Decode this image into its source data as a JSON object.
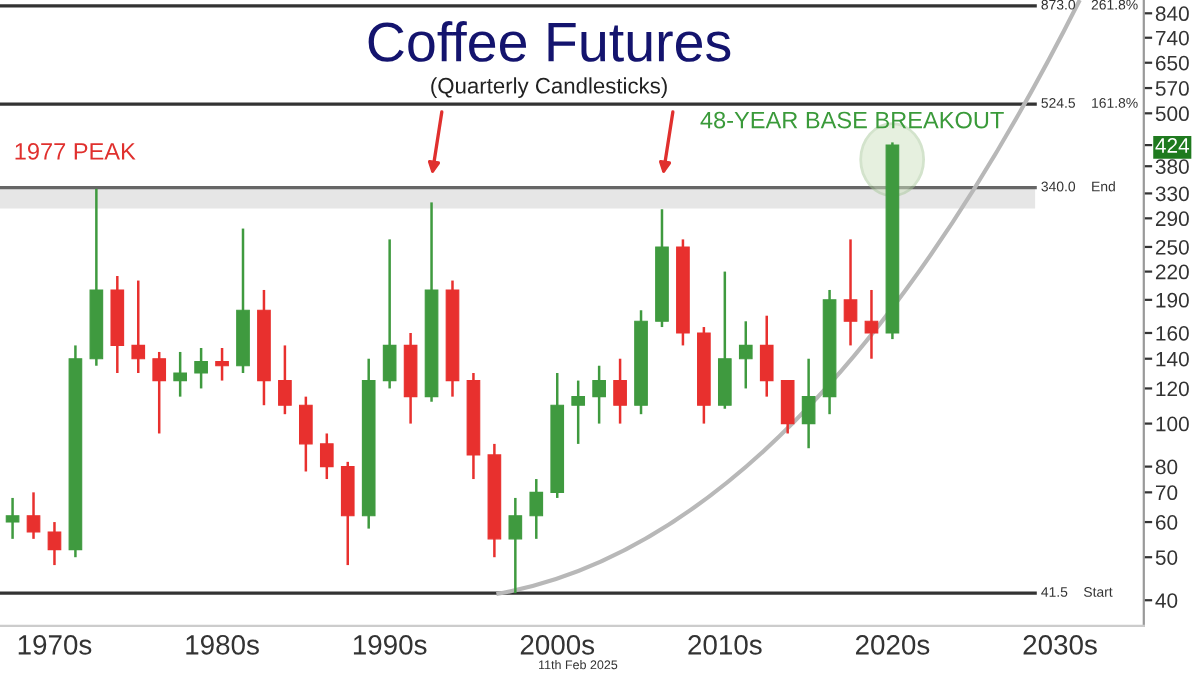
{
  "chart_data": {
    "type": "candlestick",
    "title": "Coffee Futures",
    "subtitle": "(Quarterly Candlesticks)",
    "log": true,
    "ylim": [
      35,
      900
    ],
    "yticks": [
      40,
      50,
      60,
      70,
      80,
      100,
      120,
      140,
      160,
      190,
      220,
      250,
      290,
      330,
      380,
      424,
      500,
      570,
      650,
      740,
      840
    ],
    "categories": [
      null,
      null,
      "1970s",
      null,
      null,
      null,
      null,
      null,
      null,
      null,
      "1980s",
      null,
      null,
      null,
      null,
      null,
      null,
      null,
      "1990s",
      null,
      null,
      null,
      null,
      null,
      null,
      null,
      "2000s",
      null,
      null,
      null,
      null,
      null,
      null,
      null,
      "2010s",
      null,
      null,
      null,
      null,
      null,
      null,
      null,
      "2020s",
      null,
      null,
      null,
      null,
      null,
      null,
      null,
      "2030s",
      null,
      null,
      null,
      null
    ],
    "ohlc": [
      [
        60,
        68,
        55,
        62
      ],
      [
        62,
        70,
        55,
        57
      ],
      [
        57,
        60,
        48,
        52
      ],
      [
        52,
        150,
        50,
        140
      ],
      [
        140,
        338,
        135,
        200
      ],
      [
        200,
        215,
        130,
        150
      ],
      [
        150,
        210,
        130,
        140
      ],
      [
        140,
        145,
        95,
        125
      ],
      [
        125,
        145,
        115,
        130
      ],
      [
        130,
        148,
        120,
        138
      ],
      [
        138,
        148,
        125,
        135
      ],
      [
        135,
        275,
        130,
        180
      ],
      [
        180,
        200,
        110,
        125
      ],
      [
        125,
        150,
        105,
        110
      ],
      [
        110,
        115,
        78,
        90
      ],
      [
        90,
        95,
        75,
        80
      ],
      [
        80,
        82,
        48,
        62
      ],
      [
        62,
        140,
        58,
        125
      ],
      [
        125,
        260,
        120,
        150
      ],
      [
        150,
        160,
        100,
        115
      ],
      [
        115,
        315,
        112,
        200
      ],
      [
        200,
        210,
        115,
        125
      ],
      [
        125,
        130,
        75,
        85
      ],
      [
        85,
        90,
        50,
        55
      ],
      [
        55,
        68,
        41.5,
        62
      ],
      [
        62,
        75,
        55,
        70
      ],
      [
        70,
        130,
        68,
        110
      ],
      [
        110,
        125,
        90,
        115
      ],
      [
        115,
        135,
        100,
        125
      ],
      [
        125,
        140,
        100,
        110
      ],
      [
        110,
        180,
        105,
        170
      ],
      [
        170,
        304,
        165,
        250
      ],
      [
        250,
        260,
        150,
        160
      ],
      [
        160,
        165,
        100,
        110
      ],
      [
        110,
        220,
        108,
        140
      ],
      [
        140,
        170,
        120,
        150
      ],
      [
        150,
        175,
        115,
        125
      ],
      [
        125,
        125,
        95,
        100
      ],
      [
        100,
        140,
        88,
        115
      ],
      [
        115,
        200,
        105,
        190
      ],
      [
        190,
        260,
        150,
        170
      ],
      [
        170,
        200,
        140,
        160
      ],
      [
        160,
        430,
        155,
        424
      ],
      null,
      null,
      null,
      null,
      null,
      null,
      null,
      null,
      null,
      null,
      null,
      null
    ],
    "colors": [
      "#3f9a3f",
      "#e8302e",
      "#e8302e",
      "#3f9a3f",
      "#3f9a3f",
      "#e8302e",
      "#e8302e",
      "#e8302e",
      "#3f9a3f",
      "#3f9a3f",
      "#e8302e",
      "#3f9a3f",
      "#e8302e",
      "#e8302e",
      "#e8302e",
      "#e8302e",
      "#e8302e",
      "#3f9a3f",
      "#3f9a3f",
      "#e8302e",
      "#3f9a3f",
      "#e8302e",
      "#e8302e",
      "#e8302e",
      "#3f9a3f",
      "#3f9a3f",
      "#3f9a3f",
      "#3f9a3f",
      "#3f9a3f",
      "#e8302e",
      "#3f9a3f",
      "#3f9a3f",
      "#e8302e",
      "#e8302e",
      "#3f9a3f",
      "#3f9a3f",
      "#e8302e",
      "#e8302e",
      "#3f9a3f",
      "#3f9a3f",
      "#e8302e",
      "#e8302e",
      "#3f9a3f",
      null,
      null,
      null,
      null,
      null,
      null,
      null,
      null,
      null,
      null,
      null,
      null
    ],
    "ref_lines": [
      {
        "axis": "y",
        "value": 873.0,
        "label": "873.0    261.8%",
        "color": "#333333"
      },
      {
        "axis": "y",
        "value": 524.5,
        "label": "524.5    161.8%",
        "color": "#333333"
      },
      {
        "axis": "y",
        "value": 340.0,
        "label": "340.0    End",
        "color": "#666666"
      },
      {
        "axis": "y",
        "value": 41.5,
        "label": "41.5    Start",
        "color": "#333333"
      }
    ],
    "bands": [
      {
        "axis": "y",
        "from": 305,
        "to": 340,
        "color": "#e6e6e6"
      }
    ],
    "annotations": [
      "1977 PEAK",
      "48-YEAR BASE BREAKOUT",
      "11th Feb 2025"
    ]
  }
}
